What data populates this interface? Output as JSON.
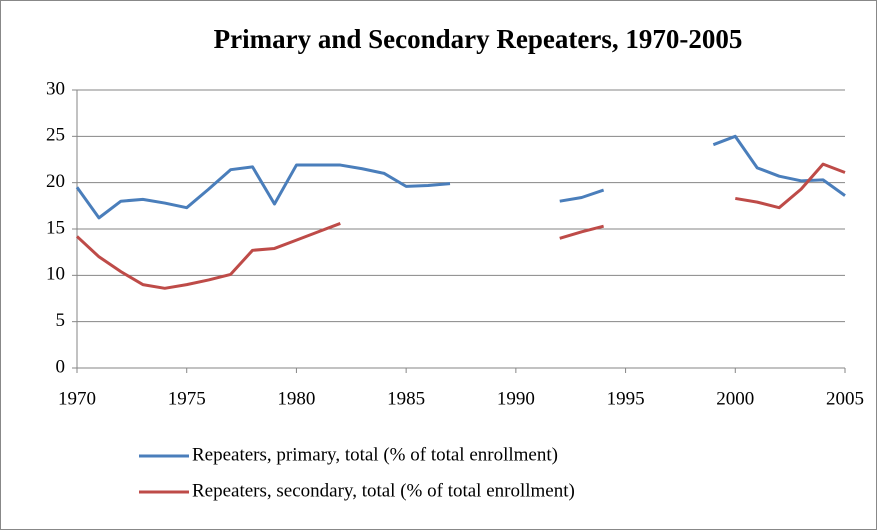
{
  "chart_data": {
    "type": "line",
    "title": "Primary and Secondary Repeaters, 1970-2005",
    "x": [
      1970,
      1971,
      1972,
      1973,
      1974,
      1975,
      1976,
      1977,
      1978,
      1979,
      1980,
      1981,
      1982,
      1983,
      1984,
      1985,
      1986,
      1987,
      1988,
      1989,
      1990,
      1991,
      1992,
      1993,
      1994,
      1995,
      1996,
      1997,
      1998,
      1999,
      2000,
      2001,
      2002,
      2003,
      2004,
      2005
    ],
    "series": [
      {
        "name": "Repeaters, primary, total (% of total enrollment)",
        "color": "#4a7ebb",
        "values": [
          19.5,
          16.2,
          18.0,
          18.2,
          17.8,
          17.3,
          19.3,
          21.4,
          21.7,
          17.7,
          21.9,
          21.9,
          21.9,
          21.5,
          21.0,
          19.6,
          19.7,
          19.9,
          null,
          null,
          null,
          null,
          18.0,
          18.4,
          19.2,
          null,
          null,
          null,
          null,
          24.1,
          25.0,
          21.6,
          20.7,
          20.2,
          20.3,
          18.6
        ]
      },
      {
        "name": "Repeaters, secondary, total (% of total enrollment)",
        "color": "#be4b48",
        "values": [
          14.2,
          12.0,
          10.4,
          9.0,
          8.6,
          9.0,
          9.5,
          10.1,
          12.7,
          12.9,
          13.8,
          14.7,
          15.6,
          null,
          null,
          null,
          null,
          null,
          null,
          null,
          null,
          null,
          14.0,
          14.7,
          15.3,
          null,
          null,
          null,
          null,
          null,
          18.3,
          17.9,
          17.3,
          19.3,
          22.0,
          21.1
        ]
      }
    ],
    "xlim": [
      1970,
      2005
    ],
    "xticks": [
      1970,
      1975,
      1980,
      1985,
      1990,
      1995,
      2000,
      2005
    ],
    "ylim": [
      0,
      30
    ],
    "yticks": [
      0,
      5,
      10,
      15,
      20,
      25,
      30
    ],
    "grid": true,
    "legend": "bottom"
  }
}
